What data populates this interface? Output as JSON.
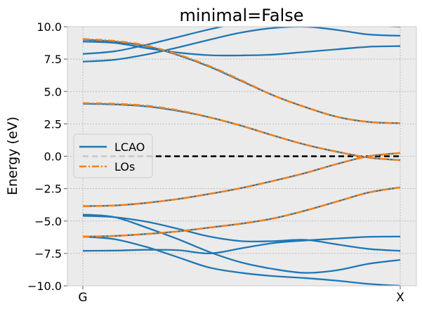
{
  "chart_data": {
    "type": "line",
    "title": "minimal=False",
    "xlabel": "",
    "ylabel": "Energy (eV)",
    "xlim": [
      0,
      1
    ],
    "ylim": [
      -10,
      10
    ],
    "grid": true,
    "x_ticks": [
      {
        "value": 0,
        "label": "G"
      },
      {
        "value": 1,
        "label": "X"
      }
    ],
    "y_ticks": [
      {
        "value": 10,
        "label": "10.0"
      },
      {
        "value": 7.5,
        "label": "7.5"
      },
      {
        "value": 5,
        "label": "5.0"
      },
      {
        "value": 2.5,
        "label": "2.5"
      },
      {
        "value": 0,
        "label": "0.0"
      },
      {
        "value": -2.5,
        "label": "−2.5"
      },
      {
        "value": -5,
        "label": "−5.0"
      },
      {
        "value": -7.5,
        "label": "−7.5"
      },
      {
        "value": -10,
        "label": "−10.0"
      }
    ],
    "fermi_level": 0,
    "legend": {
      "position": "center-left",
      "entries": [
        {
          "label": "LCAO",
          "color": "#1f77b4",
          "style": "solid"
        },
        {
          "label": "LOs",
          "color": "#ff7f0e",
          "style": "dashdot"
        }
      ]
    },
    "colors": {
      "lcao": "#1f77b4",
      "los": "#ff7f0e",
      "fermi": "#000000",
      "background": "#ebebeb"
    },
    "x": [
      0,
      0.1,
      0.2,
      0.3,
      0.4,
      0.5,
      0.6,
      0.7,
      0.8,
      0.9,
      1.0
    ],
    "series": [
      {
        "name": "LCAO",
        "label": "LCAO band 1",
        "values": [
          -7.3,
          -7.28,
          -7.22,
          -7.25,
          -7.5,
          -7.1,
          -6.7,
          -6.5,
          -6.35,
          -6.22,
          -6.2
        ]
      },
      {
        "name": "LCAO",
        "label": "LCAO band 2",
        "values": [
          -6.2,
          -6.15,
          -6.0,
          -5.8,
          -5.5,
          -5.2,
          -4.8,
          -4.2,
          -3.5,
          -2.8,
          -2.4
        ]
      },
      {
        "name": "LCAO",
        "label": "LCAO band 3",
        "values": [
          -4.6,
          -4.7,
          -5.05,
          -5.6,
          -6.2,
          -6.55,
          -6.55,
          -6.45,
          -6.8,
          -7.15,
          -7.3
        ]
      },
      {
        "name": "LCAO",
        "label": "LCAO band 4",
        "values": [
          -4.5,
          -4.7,
          -5.5,
          -6.4,
          -7.4,
          -8.2,
          -8.7,
          -9.0,
          -8.8,
          -8.3,
          -8.0
        ]
      },
      {
        "name": "LCAO",
        "label": "LCAO band 5",
        "values": [
          -6.2,
          -6.4,
          -7.0,
          -7.8,
          -8.6,
          -9.0,
          -9.25,
          -9.4,
          -9.6,
          -9.85,
          -10.0
        ]
      },
      {
        "name": "LCAO",
        "label": "LCAO band 6",
        "values": [
          -3.85,
          -3.8,
          -3.6,
          -3.3,
          -2.9,
          -2.45,
          -1.9,
          -1.3,
          -0.6,
          0.0,
          0.25
        ]
      },
      {
        "name": "LCAO",
        "label": "LCAO band 7",
        "values": [
          4.05,
          4.0,
          3.85,
          3.5,
          3.0,
          2.35,
          1.6,
          0.9,
          0.35,
          -0.1,
          -0.3
        ]
      },
      {
        "name": "LCAO",
        "label": "LCAO band 8",
        "values": [
          9.0,
          8.85,
          8.5,
          7.8,
          6.9,
          5.8,
          4.7,
          3.8,
          3.05,
          2.65,
          2.55
        ]
      },
      {
        "name": "LCAO",
        "label": "LCAO band 9",
        "values": [
          8.85,
          8.75,
          8.35,
          8.0,
          7.8,
          7.78,
          7.85,
          8.05,
          8.25,
          8.45,
          8.5
        ]
      },
      {
        "name": "LCAO",
        "label": "LCAO band 10",
        "values": [
          7.3,
          7.45,
          7.85,
          8.4,
          9.0,
          9.55,
          9.9,
          10.0,
          9.75,
          9.4,
          9.3
        ]
      },
      {
        "name": "LCAO",
        "label": "LCAO band 11",
        "values": [
          7.9,
          8.1,
          8.6,
          9.2,
          9.8,
          10.3,
          10.5,
          10.5,
          10.3,
          10.1,
          10.0
        ]
      },
      {
        "name": "LOs",
        "label": "LOs band 1",
        "values": [
          -6.2,
          -6.15,
          -6.0,
          -5.8,
          -5.5,
          -5.2,
          -4.8,
          -4.2,
          -3.5,
          -2.8,
          -2.4
        ]
      },
      {
        "name": "LOs",
        "label": "LOs band 2",
        "values": [
          -3.85,
          -3.8,
          -3.6,
          -3.3,
          -2.9,
          -2.45,
          -1.9,
          -1.3,
          -0.6,
          0.0,
          0.25
        ]
      },
      {
        "name": "LOs",
        "label": "LOs band 3",
        "values": [
          4.1,
          4.05,
          3.9,
          3.55,
          3.0,
          2.35,
          1.6,
          0.9,
          0.35,
          -0.1,
          -0.3
        ]
      },
      {
        "name": "LOs",
        "label": "LOs band 4",
        "values": [
          9.05,
          8.9,
          8.55,
          7.85,
          6.95,
          5.85,
          4.7,
          3.8,
          3.05,
          2.65,
          2.55
        ]
      }
    ]
  }
}
